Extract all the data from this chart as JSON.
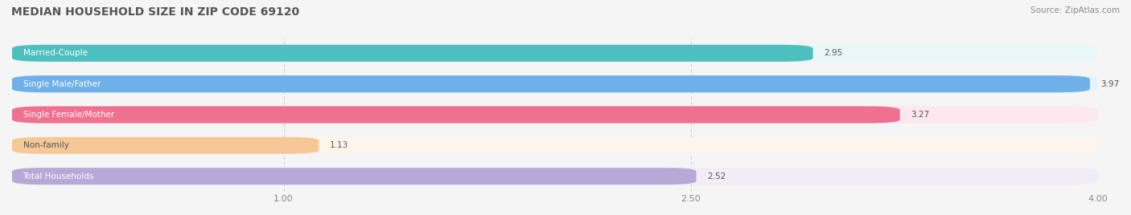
{
  "title": "MEDIAN HOUSEHOLD SIZE IN ZIP CODE 69120",
  "source": "Source: ZipAtlas.com",
  "categories": [
    "Married-Couple",
    "Single Male/Father",
    "Single Female/Mother",
    "Non-family",
    "Total Households"
  ],
  "values": [
    2.95,
    3.97,
    3.27,
    1.13,
    2.52
  ],
  "bar_colors": [
    "#4DBFBF",
    "#6EB0E8",
    "#F07090",
    "#F5C896",
    "#B8A8D8"
  ],
  "bar_bg_colors": [
    "#E8F8F8",
    "#E8F2FC",
    "#FCE8EE",
    "#FDF5EC",
    "#F0ECF8"
  ],
  "xlim": [
    0.0,
    4.0
  ],
  "xticks": [
    1.0,
    2.5,
    4.0
  ],
  "xtick_labels": [
    "1.00",
    "2.50",
    "4.00"
  ],
  "value_labels": [
    "2.95",
    "3.97",
    "3.27",
    "1.13",
    "2.52"
  ],
  "figsize": [
    14.06,
    2.68
  ],
  "dpi": 100
}
